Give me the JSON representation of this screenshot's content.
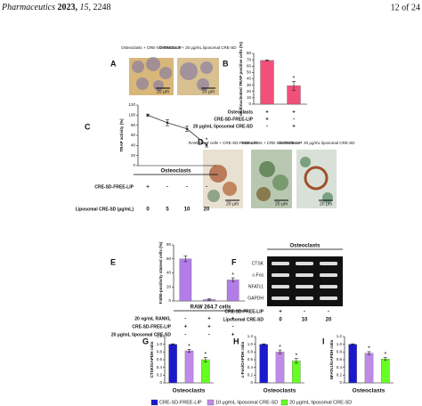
{
  "header": {
    "journal": "Pharmaceutics",
    "year": "2023,",
    "volume": "15,",
    "article": "2248",
    "page": "12 of 24"
  },
  "panel_a": {
    "letter": "A",
    "captions": [
      "Osteoclasts + CRE-SD-FREE-LIP",
      "Osteoclasts + 20 μg/mL liposomal CRE-SD"
    ],
    "scale_bars": [
      "20 μm",
      "20 μm"
    ]
  },
  "panel_b": {
    "letter": "B",
    "type": "bar",
    "ylabel": "multinucleated TRAP positive cells (%)",
    "ylim": [
      0,
      80
    ],
    "yticks": [
      0,
      10,
      20,
      30,
      40,
      50,
      60,
      70,
      80
    ],
    "values": [
      69,
      29
    ],
    "errors": [
      1,
      7
    ],
    "color": "#f0507a",
    "annotations": [
      "*"
    ],
    "rows": [
      {
        "label": "Osteoclasts",
        "marks": [
          "+",
          "+"
        ]
      },
      {
        "label": "CRE-SD-FREE-LIP",
        "marks": [
          "+",
          "-"
        ]
      },
      {
        "label": "20 μg/mL liposomal CRE-SD",
        "marks": [
          "-",
          "+"
        ]
      }
    ]
  },
  "panel_c": {
    "letter": "C",
    "type": "line",
    "ylabel": "TRAP activity (%)",
    "ylim": [
      0,
      120
    ],
    "yticks": [
      0,
      20,
      40,
      60,
      80,
      100,
      120
    ],
    "values": [
      100,
      85,
      73,
      41
    ],
    "errors": [
      2,
      6,
      5,
      4
    ],
    "color": "#333333",
    "group": "Osteoclasts",
    "annotations": [
      "*"
    ],
    "rows": [
      {
        "label": "CRE-SD-FREE-LIP",
        "marks": [
          "+",
          "-",
          "-",
          "-"
        ]
      },
      {
        "label": "Liposomal CRE-SD (μg/mL)",
        "marks": [
          "0",
          "5",
          "10",
          "20"
        ]
      }
    ]
  },
  "panel_d": {
    "letter": "D",
    "captions": [
      "RAW 264.7 cells + CRE-SD-FREE-LIP",
      "Osteoclasts + CRE-SD-FREE-LIP",
      "Osteoclasts + 20 μg/mL liposomal CRE-SD"
    ],
    "scale_bars": [
      "20 μm",
      "20 μm",
      "20 μm"
    ]
  },
  "panel_e": {
    "letter": "E",
    "type": "bar",
    "ylabel": "F4/80-positivity stained cells (%)",
    "ylim": [
      0,
      80
    ],
    "yticks": [
      0,
      20,
      40,
      60,
      80
    ],
    "values": [
      60,
      2,
      30
    ],
    "errors": [
      4,
      1,
      3
    ],
    "color": "#b27de6",
    "group": "RAW 264.7 cells",
    "annotations": [
      "*"
    ],
    "rows": [
      {
        "label": "20 ng/mL RANKL",
        "marks": [
          "-",
          "+",
          "+"
        ]
      },
      {
        "label": "CRE-SD-FREE-LIP",
        "marks": [
          "+",
          "+",
          "-"
        ]
      },
      {
        "label": "20 μg/mL liposomal CRE-SD",
        "marks": [
          "-",
          "-",
          "+"
        ]
      }
    ]
  },
  "panel_f": {
    "letter": "F",
    "group": "Osteoclasts",
    "bands": [
      "CTSK",
      "c-Fos",
      "NFATc1",
      "GAPDH"
    ],
    "rows": [
      {
        "label": "CRE-SD-FREE-LIP",
        "marks": [
          "+",
          "-",
          "-"
        ]
      },
      {
        "label": "Liposomal CRE-SD",
        "marks": [
          "0",
          "10",
          "20"
        ]
      }
    ]
  },
  "panels_ghi": [
    {
      "letter": "G",
      "type": "bar",
      "ylabel": "CTSK/GAPDH ratio",
      "xlabel": "Osteoclasts",
      "ylim": [
        0,
        1.2
      ],
      "yticks": [
        0,
        0.2,
        0.4,
        0.6,
        0.8,
        {
          "value": 1,
          "label": "1.0"
        },
        1.2
      ],
      "values": [
        1.0,
        0.83,
        0.6
      ],
      "errors": [
        0.01,
        0.04,
        0.06
      ],
      "annotations": [
        "*",
        "*"
      ]
    },
    {
      "letter": "H",
      "type": "bar",
      "ylabel": "c-Fos/GAPDH ratio",
      "xlabel": "Osteoclasts",
      "ylim": [
        0,
        1.2
      ],
      "yticks": [
        0,
        0.2,
        0.4,
        0.6,
        0.8,
        {
          "value": 1,
          "label": "1.0"
        },
        1.2
      ],
      "values": [
        1.0,
        0.8,
        0.57
      ],
      "errors": [
        0.01,
        0.05,
        0.06
      ],
      "annotations": [
        "*",
        "*"
      ]
    },
    {
      "letter": "I",
      "type": "bar",
      "ylabel": "NFATc1/GAPDH ratio",
      "xlabel": "Osteoclasts",
      "ylim": [
        0,
        1.2
      ],
      "yticks": [
        0,
        0.2,
        0.4,
        0.6,
        0.8,
        {
          "value": 1,
          "label": "1.0"
        },
        1.2
      ],
      "values": [
        1.0,
        0.77,
        0.62
      ],
      "errors": [
        0.01,
        0.04,
        0.04
      ],
      "annotations": [
        "*",
        "*"
      ]
    }
  ],
  "legend": [
    {
      "name": "CRE-SD-FREE-LIP",
      "color": "#1a1acc"
    },
    {
      "name": "10 μg/mL liposomal CRE-SD",
      "color": "#c08ae8"
    },
    {
      "name": "20 μg/mL liposomal CRE-SD",
      "color": "#66ff22"
    }
  ]
}
